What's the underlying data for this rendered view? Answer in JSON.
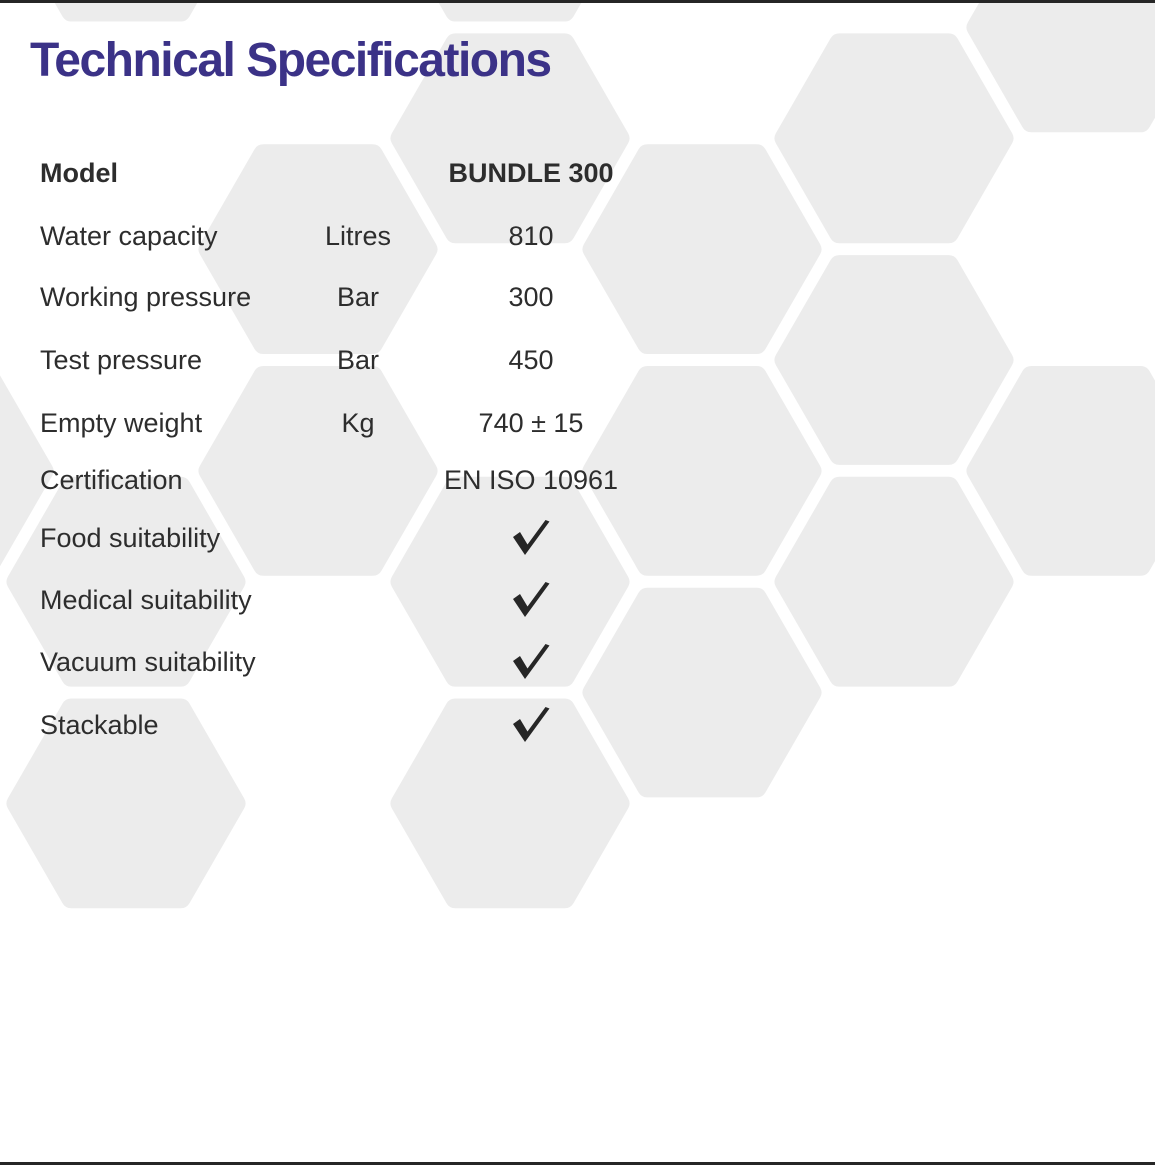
{
  "title": "Technical Specifications",
  "colors": {
    "background": "#ffffff",
    "title_accent": "#3b3287",
    "body_text": "#2d2d2d",
    "hexagon_fill": "#ececec",
    "edge_bar": "#262626",
    "check_mark": "#262626"
  },
  "table": {
    "rows": [
      {
        "label": "Model",
        "unit": "",
        "value": "BUNDLE 300",
        "value_type": "text",
        "bold": true
      },
      {
        "label": "Water capacity",
        "unit": "Litres",
        "value": "810",
        "value_type": "text",
        "bold": false
      },
      {
        "label": "Working pressure",
        "unit": "Bar",
        "value": "300",
        "value_type": "text",
        "bold": false
      },
      {
        "label": "Test pressure",
        "unit": "Bar",
        "value": "450",
        "value_type": "text",
        "bold": false
      },
      {
        "label": "Empty weight",
        "unit": "Kg",
        "value": "740 ± 15",
        "value_type": "text",
        "bold": false
      },
      {
        "label": "Certification",
        "unit": "",
        "value": "EN ISO 10961",
        "value_type": "text",
        "bold": false
      },
      {
        "label": "Food suitability",
        "unit": "",
        "value": "checked",
        "value_type": "check",
        "bold": false
      },
      {
        "label": "Medical suitability",
        "unit": "",
        "value": "checked",
        "value_type": "check",
        "bold": false
      },
      {
        "label": "Vacuum suitability",
        "unit": "",
        "value": "checked",
        "value_type": "check",
        "bold": false
      },
      {
        "label": "Stackable",
        "unit": "",
        "value": "checked",
        "value_type": "check",
        "bold": false
      }
    ]
  }
}
